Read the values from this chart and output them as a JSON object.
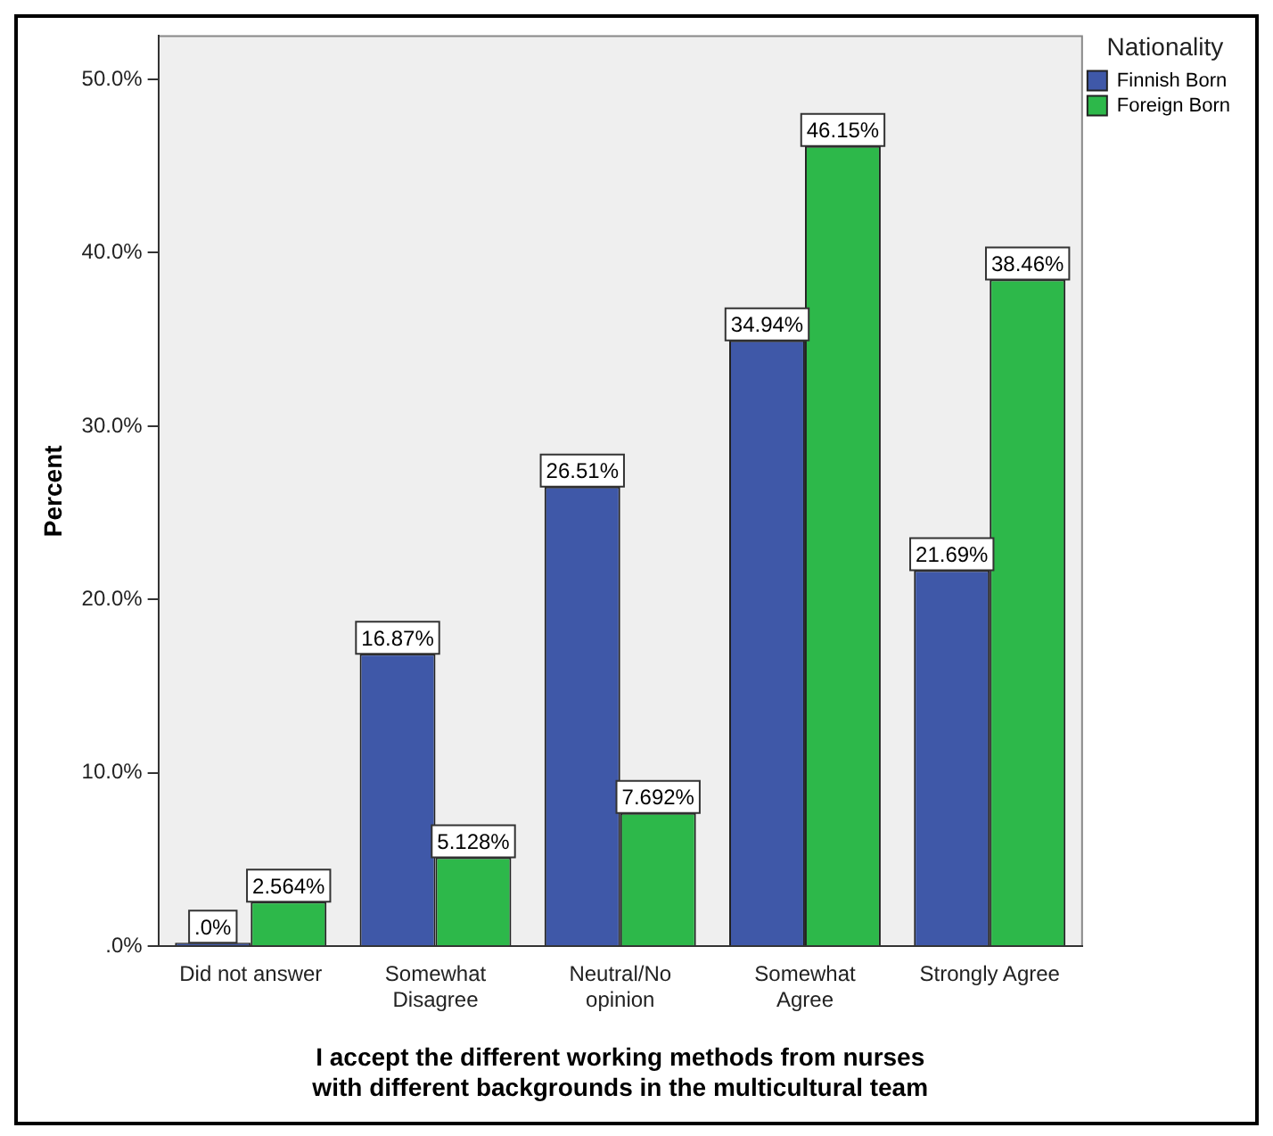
{
  "chart_data": {
    "type": "bar",
    "xlabel": "I accept the different working methods from nurses\nwith different backgrounds in the multicultural team",
    "ylabel": "Percent",
    "legend_title": "Nationality",
    "categories": [
      "Did not answer",
      "Somewhat\nDisagree",
      "Neutral/No\nopinion",
      "Somewhat\nAgree",
      "Strongly Agree"
    ],
    "series": [
      {
        "name": "Finnish Born",
        "color": "#3f58a8",
        "values": [
          0,
          16.87,
          26.51,
          34.94,
          21.69
        ],
        "value_labels": [
          ".0%",
          "16.87%",
          "26.51%",
          "34.94%",
          "21.69%"
        ]
      },
      {
        "name": "Foreign Born",
        "color": "#2db84a",
        "values": [
          2.564,
          5.128,
          7.692,
          46.15,
          38.46
        ],
        "value_labels": [
          "2.564%",
          "5.128%",
          "7.692%",
          "46.15%",
          "38.46%"
        ]
      }
    ],
    "ylim": [
      0,
      52.5
    ],
    "yticks": [
      {
        "value": 0,
        "label": ".0%"
      },
      {
        "value": 10,
        "label": "10.0%"
      },
      {
        "value": 20,
        "label": "20.0%"
      },
      {
        "value": 30,
        "label": "30.0%"
      },
      {
        "value": 40,
        "label": "40.0%"
      },
      {
        "value": 50,
        "label": "50.0%"
      }
    ],
    "grid": false,
    "legend": "top right"
  }
}
